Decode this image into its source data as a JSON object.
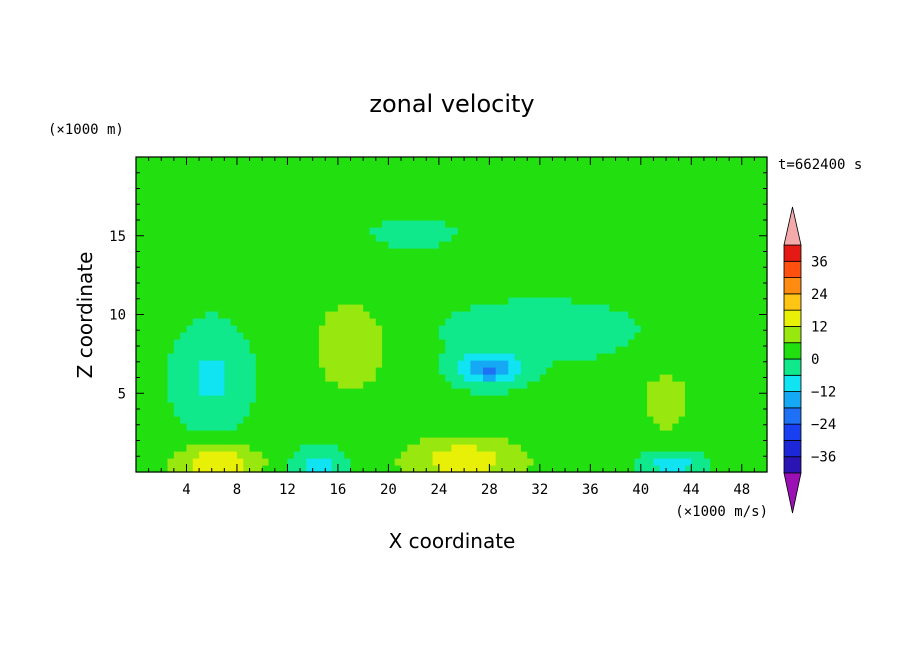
{
  "chart_data": {
    "type": "heatmap",
    "title": "zonal velocity",
    "xlabel": "X coordinate",
    "ylabel": "Z coordinate",
    "x_unit": "(×1000 m/s)",
    "y_unit": "(×1000 m)",
    "time_label": "t=662400 s",
    "xlim": [
      0,
      50
    ],
    "ylim": [
      0,
      20
    ],
    "x_ticks": [
      4,
      8,
      12,
      16,
      20,
      24,
      28,
      32,
      36,
      40,
      44,
      48
    ],
    "y_ticks": [
      5,
      10,
      15
    ],
    "colorbar": {
      "levels": [
        -42,
        -36,
        -30,
        -24,
        -18,
        -12,
        -6,
        0,
        6,
        12,
        18,
        24,
        30,
        36,
        42
      ],
      "colors": [
        "#5a0a9a",
        "#2a15b4",
        "#1c28d8",
        "#1840f0",
        "#1e70f5",
        "#14a8f5",
        "#10e4f2",
        "#10e88c",
        "#22e010",
        "#98e810",
        "#e8f008",
        "#ffc414",
        "#ff8c10",
        "#ff5010",
        "#e61a14",
        "#c80a0a"
      ],
      "tick_labels": [
        "36",
        "24",
        "12",
        "0",
        "-12",
        "-24",
        "-36"
      ],
      "over_color": "#f4aaaa",
      "under_color": "#9a10b4"
    },
    "field_description_blobs": [
      {
        "x": 6.5,
        "z": 0.6,
        "sx": 3.5,
        "sz": 1.2,
        "v": 16
      },
      {
        "x": 26.0,
        "z": 0.8,
        "sx": 5.0,
        "sz": 1.5,
        "v": 14
      },
      {
        "x": 17.0,
        "z": 8.0,
        "sx": 3.0,
        "sz": 3.0,
        "v": 10
      },
      {
        "x": 42.0,
        "z": 4.5,
        "sx": 2.0,
        "sz": 2.0,
        "v": 9
      },
      {
        "x": 28.0,
        "z": 6.6,
        "sx": 2.4,
        "sz": 1.0,
        "v": -20
      },
      {
        "x": 6.0,
        "z": 6.0,
        "sx": 2.6,
        "sz": 3.0,
        "v": -9
      },
      {
        "x": 14.5,
        "z": 0.4,
        "sx": 2.0,
        "sz": 1.0,
        "v": -10
      },
      {
        "x": 42.5,
        "z": 0.5,
        "sx": 2.0,
        "sz": 0.8,
        "v": -12
      },
      {
        "x": 32.0,
        "z": 9.0,
        "sx": 8.0,
        "sz": 2.0,
        "v": -4
      },
      {
        "x": 22.0,
        "z": 15.2,
        "sx": 4.0,
        "sz": 1.2,
        "v": -3
      }
    ]
  }
}
